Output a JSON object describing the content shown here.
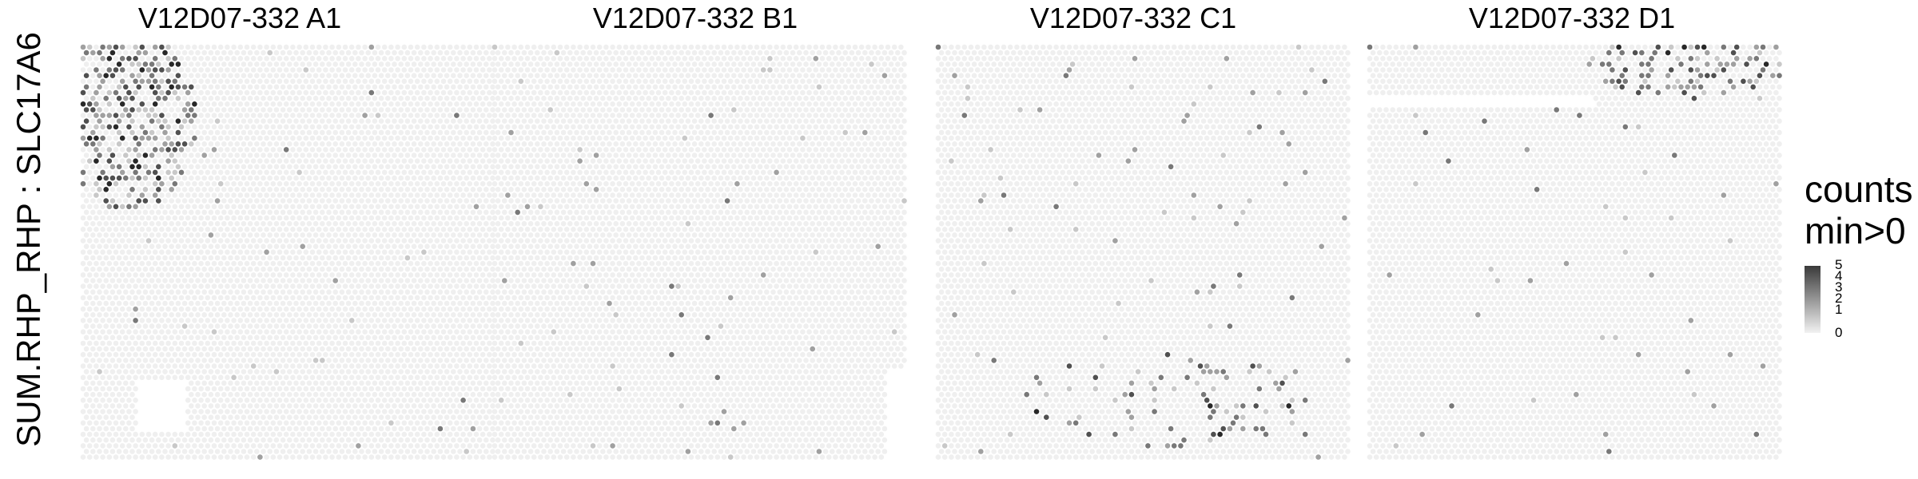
{
  "y_axis_label": "SUM.RHP_RHP : SLC17A6",
  "panels": [
    {
      "title": "V12D07-332  A1"
    },
    {
      "title": "V12D07-332  B1"
    },
    {
      "title": "V12D07-332  C1"
    },
    {
      "title": "V12D07-332  D1"
    }
  ],
  "legend": {
    "title_line1": "counts",
    "title_line2": "min>0",
    "ticks": [
      "5",
      "4",
      "3",
      "2",
      "1",
      "0"
    ]
  },
  "colors": {
    "background_spot": "#efefef",
    "low": "#f2f2f2",
    "high": "#2a2a2a"
  },
  "chart_data": {
    "type": "heatmap",
    "facets": [
      "V12D07-332  A1",
      "V12D07-332  B1",
      "V12D07-332  C1",
      "V12D07-332  D1"
    ],
    "value_name": "counts",
    "value_range": [
      0,
      5
    ],
    "notes": "Spatial spot plot; background spots with count 0 are light gray, expressing spots shaded gray to black.",
    "hotspots": [
      {
        "facet": "V12D07-332  A1",
        "region": "top-left",
        "max_count": 5
      },
      {
        "facet": "V12D07-332  B1",
        "region": "scattered",
        "max_count": 3
      },
      {
        "facet": "V12D07-332  C1",
        "region": "scattered",
        "max_count": 4
      },
      {
        "facet": "V12D07-332  D1",
        "region": "top-right",
        "max_count": 5
      }
    ]
  }
}
